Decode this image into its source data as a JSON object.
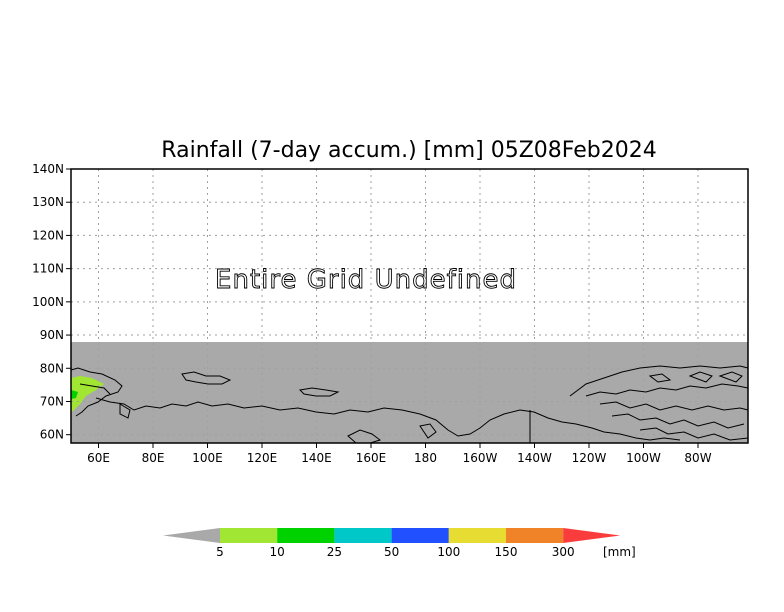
{
  "map": {
    "title": "Rainfall (7-day accum.) [mm] 05Z08Feb2024",
    "message": "Entire Grid Undefined",
    "lat_labels": [
      "140N",
      "130N",
      "120N",
      "110N",
      "100N",
      "90N",
      "80N",
      "70N",
      "60N"
    ],
    "lon_labels": [
      "60E",
      "80E",
      "100E",
      "120E",
      "140E",
      "160E",
      "180",
      "160W",
      "140W",
      "120W",
      "100W",
      "80W"
    ],
    "colors": {
      "undefined_fill": "#a9a9a9",
      "coastline": "#000000",
      "grid": "#a0a0a0"
    }
  },
  "colorbar": {
    "unit": "[mm]",
    "ticks": [
      "5",
      "10",
      "25",
      "50",
      "100",
      "150",
      "300"
    ],
    "bins": [
      {
        "color": "#a9a9a9"
      },
      {
        "color": "#a0e632"
      },
      {
        "color": "#00d200"
      },
      {
        "color": "#00c8c8"
      },
      {
        "color": "#2050ff"
      },
      {
        "color": "#e6dc32"
      },
      {
        "color": "#f08228"
      },
      {
        "color": "#fa3c3c"
      }
    ]
  }
}
